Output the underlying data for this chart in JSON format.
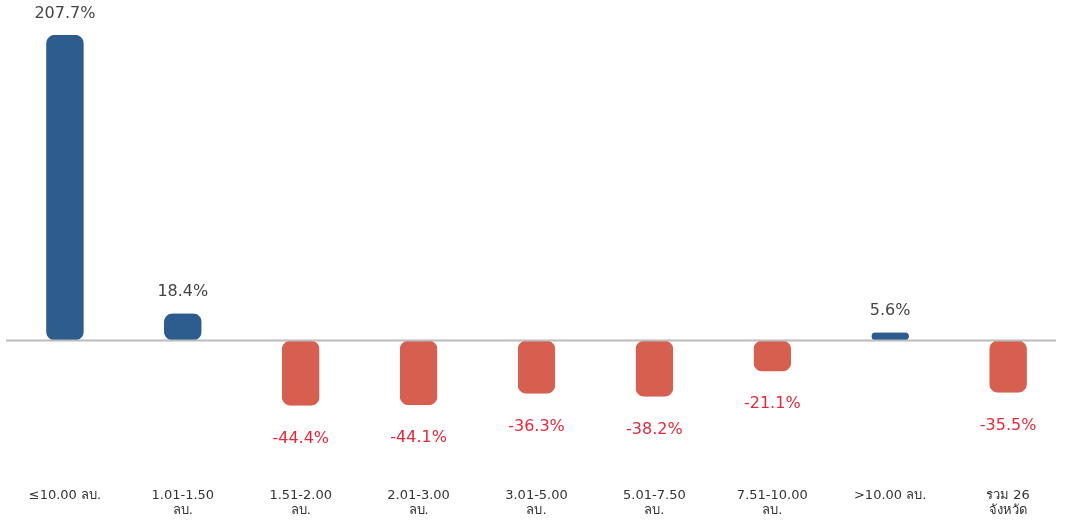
{
  "chart_data": {
    "type": "bar",
    "categories": [
      "≤10.00 ลบ.",
      "1.01-1.50 ลบ.",
      "1.51-2.00 ลบ.",
      "2.01-3.00 ลบ.",
      "3.01-5.00 ลบ.",
      "5.01-7.50 ลบ.",
      "7.51-10.00 ลบ.",
      ">10.00 ลบ.",
      "รวม 26 จังหวัด"
    ],
    "values": [
      207.7,
      18.4,
      -44.4,
      -44.1,
      -36.3,
      -38.2,
      -21.1,
      5.6,
      -35.5
    ],
    "colors": [
      "#2d5c8e",
      "#2d5c8e",
      "#d65f4f",
      "#d65f4f",
      "#d65f4f",
      "#d65f4f",
      "#d65f4f",
      "#2d5c8e",
      "#d65f4f"
    ],
    "value_labels": [
      "207.7%",
      "18.4%",
      "-44.4%",
      "-44.1%",
      "-36.3%",
      "-38.2%",
      "-21.1%",
      "5.6%",
      "-35.5%"
    ]
  }
}
